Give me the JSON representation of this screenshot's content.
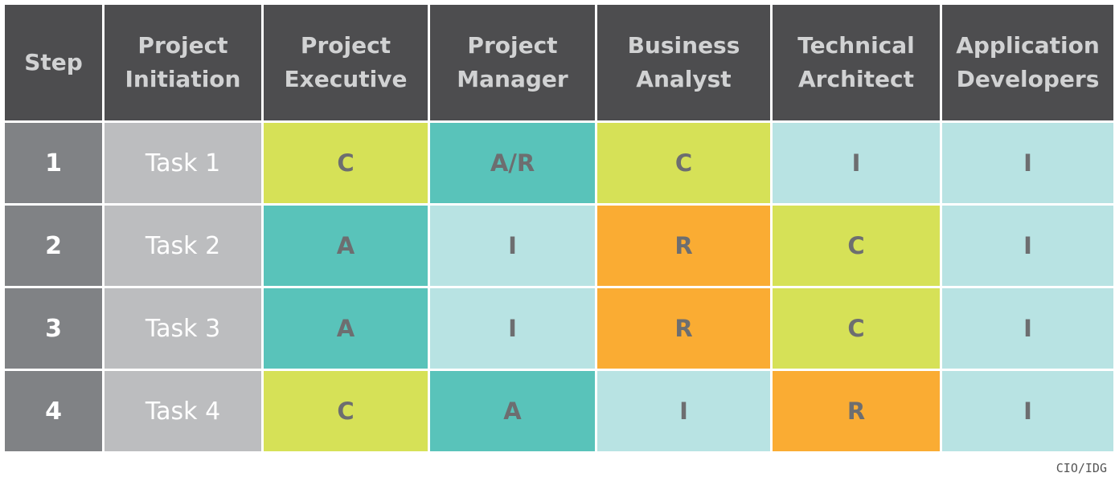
{
  "headers": [
    "Step",
    "Project Initiation",
    "Project Executive",
    "Project Manager",
    "Business Analyst",
    "Technical Architect",
    "Application Developers"
  ],
  "rows": [
    {
      "step": "1",
      "task": "Task 1",
      "cells": [
        "C",
        "A/R",
        "C",
        "I",
        "I"
      ]
    },
    {
      "step": "2",
      "task": "Task 2",
      "cells": [
        "A",
        "I",
        "R",
        "C",
        "I"
      ]
    },
    {
      "step": "3",
      "task": "Task 3",
      "cells": [
        "A",
        "I",
        "R",
        "C",
        "I"
      ]
    },
    {
      "step": "4",
      "task": "Task 4",
      "cells": [
        "C",
        "A",
        "I",
        "R",
        "I"
      ]
    }
  ],
  "colors": {
    "header_bg": "#4d4d4f",
    "step_bg": "#808285",
    "task_bg": "#bcbdbf",
    "A": "#59c3ba",
    "A/R": "#59c3ba",
    "C": "#d6e157",
    "R": "#faac33",
    "I": "#b8e3e3"
  },
  "credit": "CIO/IDG"
}
